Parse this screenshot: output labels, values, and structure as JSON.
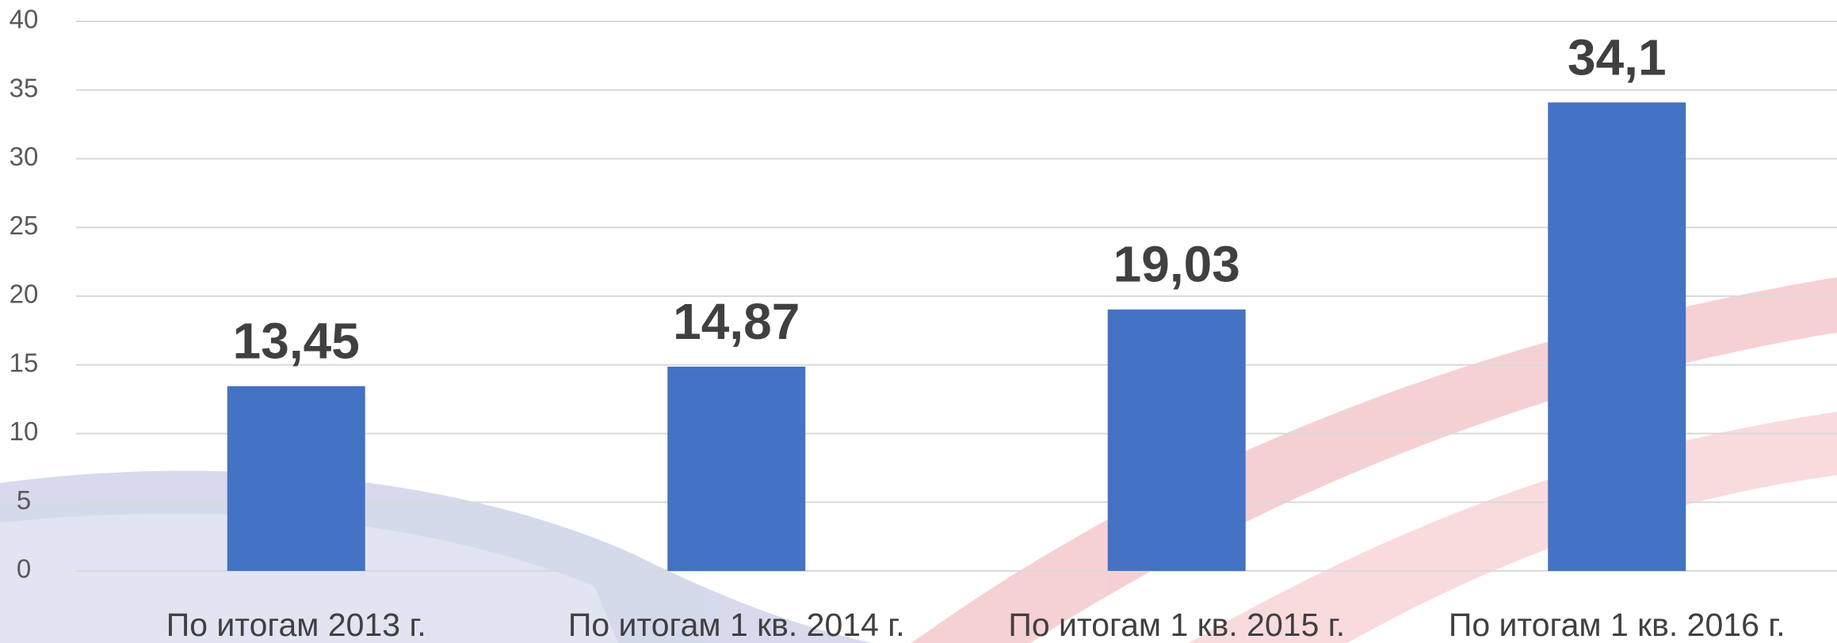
{
  "chart_data": {
    "type": "bar",
    "categories": [
      "По итогам 2013 г.",
      "По итогам 1 кв. 2014 г.",
      "По итогам 1 кв. 2015 г.",
      "По итогам 1 кв. 2016 г."
    ],
    "values": [
      13.45,
      14.87,
      19.03,
      34.1
    ],
    "value_labels": [
      "13,45",
      "14,87",
      "19,03",
      "34,1"
    ],
    "color": "#4472c4",
    "ylim": [
      0,
      40
    ],
    "yticks": [
      0,
      5,
      10,
      15,
      20,
      25,
      30,
      35,
      40
    ],
    "grid": true
  }
}
